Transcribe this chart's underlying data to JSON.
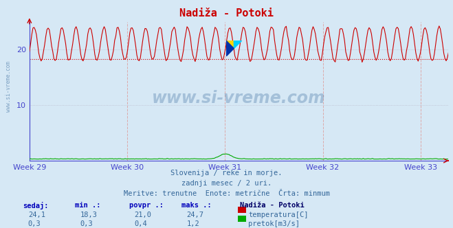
{
  "title": "Nadiža - Potoki",
  "background_color": "#d6e8f5",
  "plot_bg_color": "#d6e8f5",
  "x_weeks": [
    "Week 29",
    "Week 30",
    "Week 31",
    "Week 32",
    "Week 33"
  ],
  "x_week_positions": [
    0,
    168,
    336,
    504,
    672
  ],
  "ylim": [
    0,
    25
  ],
  "yticks": [
    10,
    20
  ],
  "grid_color": "#c8c8e0",
  "temp_color": "#cc0000",
  "flow_color": "#00aa00",
  "min_line_color": "#cc0000",
  "min_line_value": 18.3,
  "spine_color": "#4444cc",
  "tick_color": "#4444cc",
  "temp_min": 18.3,
  "temp_max": 24.7,
  "temp_avg": 21.0,
  "temp_current": 24.1,
  "flow_min": 0.3,
  "flow_max": 1.2,
  "flow_avg": 0.4,
  "flow_current": 0.3,
  "subtitle1": "Slovenija / reke in morje.",
  "subtitle2": "zadnji mesec / 2 uri.",
  "subtitle3": "Meritve: trenutne  Enote: metrične  Črta: minmum",
  "station_name": "Nadiža - Potoki",
  "watermark": "www.si-vreme.com",
  "total_hours": 720,
  "dpi": 100,
  "fig_width": 6.59,
  "fig_height": 3.32
}
